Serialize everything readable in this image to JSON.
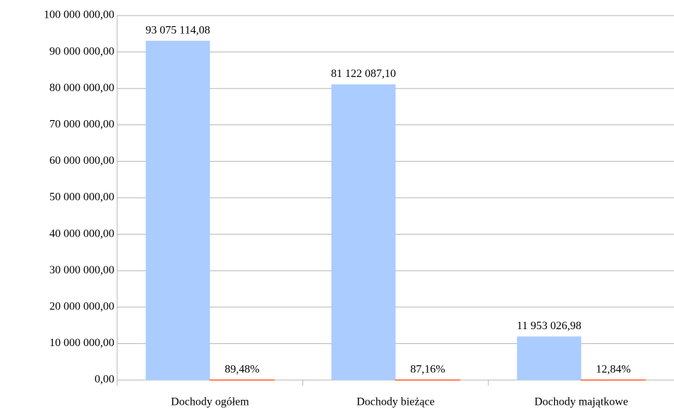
{
  "chart_data": {
    "type": "bar",
    "categories": [
      "Dochody ogółem",
      "Dochody bieżące",
      "Dochody majątkowe"
    ],
    "series": [
      {
        "color": "#aaccff",
        "values": [
          93075114.08,
          81122087.1,
          11953026.98
        ],
        "value_labels": [
          "93 075 114,08",
          "81 122 087,10",
          "11 953 026,98"
        ]
      },
      {
        "color": "#ff5a2a",
        "values": [
          89.48,
          87.16,
          12.84
        ],
        "value_labels": [
          "89,48%",
          "87,16%",
          "12,84%"
        ]
      }
    ],
    "ylim": [
      0,
      100000000
    ],
    "yticks": [
      {
        "value": 0,
        "label": "0,00"
      },
      {
        "value": 10000000,
        "label": "10 000 000,00"
      },
      {
        "value": 20000000,
        "label": "20 000 000,00"
      },
      {
        "value": 30000000,
        "label": "30 000 000,00"
      },
      {
        "value": 40000000,
        "label": "40 000 000,00"
      },
      {
        "value": 50000000,
        "label": "50 000 000,00"
      },
      {
        "value": 60000000,
        "label": "60 000 000,00"
      },
      {
        "value": 70000000,
        "label": "70 000 000,00"
      },
      {
        "value": 80000000,
        "label": "80 000 000,00"
      },
      {
        "value": 90000000,
        "label": "90 000 000,00"
      },
      {
        "value": 100000000,
        "label": "100 000 000,00"
      }
    ],
    "grid": true
  }
}
